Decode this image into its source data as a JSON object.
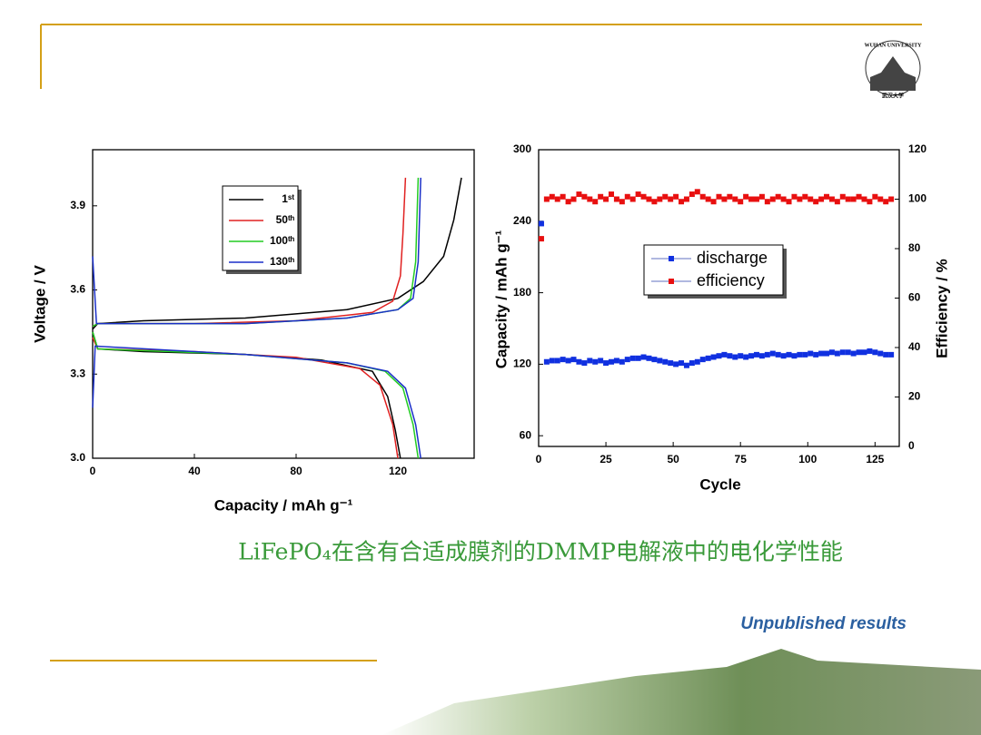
{
  "slide": {
    "caption": "LiFePO₄在含有合适成膜剂的DMMP电解液中的电化学性能",
    "note": "Unpublished results",
    "logo_text": "WUHAN UNIVERSITY",
    "logo_subtext": "武汉大学"
  },
  "chart_data": [
    {
      "type": "line",
      "xlabel": "Capacity / mAh g⁻¹",
      "ylabel": "Voltage / V",
      "xlim": [
        0,
        150
      ],
      "ylim": [
        3.0,
        4.1
      ],
      "xticks": [
        0,
        40,
        80,
        120
      ],
      "yticks": [
        {
          "value": 3,
          "label": "3.0"
        },
        3.3,
        3.6,
        3.9
      ],
      "legend": "upper center",
      "series": [
        {
          "name": "1ˢᵗ",
          "color": "#000000",
          "x": [
            0,
            2,
            20,
            60,
            100,
            120,
            130,
            138,
            142,
            145,
            null,
            0,
            2,
            20,
            60,
            90,
            110,
            116,
            119,
            121
          ],
          "values": [
            3.46,
            3.48,
            3.49,
            3.5,
            3.53,
            3.57,
            3.63,
            3.72,
            3.85,
            4.0,
            null,
            3.45,
            3.39,
            3.38,
            3.37,
            3.35,
            3.31,
            3.22,
            3.1,
            3.0
          ]
        },
        {
          "name": "50ᵗʰ",
          "color": "#e02020",
          "x": [
            0,
            2,
            40,
            80,
            110,
            118,
            121,
            122,
            123,
            null,
            0,
            2,
            40,
            80,
            105,
            113,
            118,
            120
          ],
          "values": [
            3.47,
            3.48,
            3.48,
            3.49,
            3.52,
            3.56,
            3.65,
            3.8,
            4.0,
            null,
            3.43,
            3.39,
            3.38,
            3.36,
            3.32,
            3.26,
            3.12,
            3.0
          ]
        },
        {
          "name": "100ᵗʰ",
          "color": "#22cc22",
          "x": [
            0,
            2,
            60,
            100,
            120,
            125,
            127,
            128,
            null,
            0,
            2,
            60,
            100,
            115,
            122,
            126,
            128
          ],
          "values": [
            3.47,
            3.48,
            3.48,
            3.5,
            3.53,
            3.57,
            3.7,
            4.0,
            null,
            3.45,
            3.39,
            3.37,
            3.34,
            3.31,
            3.25,
            3.12,
            3.0
          ]
        },
        {
          "name": "130ᵗʰ",
          "color": "#1a2fc8",
          "x": [
            0,
            1.5,
            60,
            100,
            120,
            126,
            128,
            129,
            null,
            0,
            1,
            60,
            100,
            116,
            123,
            127,
            129
          ],
          "values": [
            3.72,
            3.48,
            3.48,
            3.5,
            3.53,
            3.57,
            3.7,
            4.0,
            null,
            3.18,
            3.4,
            3.37,
            3.34,
            3.31,
            3.25,
            3.12,
            3.0
          ]
        }
      ]
    },
    {
      "type": "scatter",
      "xlabel": "Cycle",
      "ylabel": "Capacity / mAh g⁻¹",
      "y2label": "Efficiency / %",
      "xlim": [
        0,
        134
      ],
      "ylim": [
        51,
        300
      ],
      "y2lim": [
        0,
        120
      ],
      "xticks": [
        0,
        25,
        50,
        75,
        100,
        125
      ],
      "yticks": [
        60,
        120,
        180,
        240,
        300
      ],
      "y2ticks": [
        0,
        20,
        40,
        60,
        80,
        100,
        120
      ],
      "legend": "center",
      "x": [
        1,
        3,
        5,
        7,
        9,
        11,
        13,
        15,
        17,
        19,
        21,
        23,
        25,
        27,
        29,
        31,
        33,
        35,
        37,
        39,
        41,
        43,
        45,
        47,
        49,
        51,
        53,
        55,
        57,
        59,
        61,
        63,
        65,
        67,
        69,
        71,
        73,
        75,
        77,
        79,
        81,
        83,
        85,
        87,
        89,
        91,
        93,
        95,
        97,
        99,
        101,
        103,
        105,
        107,
        109,
        111,
        113,
        115,
        117,
        119,
        121,
        123,
        125,
        127,
        129,
        131
      ],
      "series": [
        {
          "name": "discharge",
          "color": "#1030e0",
          "values": [
            238,
            122,
            123,
            123,
            124,
            123,
            124,
            122,
            121,
            123,
            122,
            123,
            121,
            122,
            123,
            122,
            124,
            125,
            125,
            126,
            125,
            124,
            123,
            122,
            121,
            120,
            121,
            119,
            121,
            122,
            124,
            125,
            126,
            127,
            128,
            127,
            126,
            127,
            126,
            127,
            128,
            127,
            128,
            129,
            128,
            127,
            128,
            127,
            128,
            128,
            129,
            128,
            129,
            129,
            130,
            129,
            130,
            130,
            129,
            130,
            130,
            131,
            130,
            129,
            128,
            128
          ]
        },
        {
          "name": "efficiency",
          "color": "#e81010",
          "axis": "y2",
          "values": [
            84,
            100,
            101,
            100,
            101,
            99,
            100,
            102,
            101,
            100,
            99,
            101,
            100,
            102,
            100,
            99,
            101,
            100,
            102,
            101,
            100,
            99,
            100,
            101,
            100,
            101,
            99,
            100,
            102,
            103,
            101,
            100,
            99,
            101,
            100,
            101,
            100,
            99,
            101,
            100,
            100,
            101,
            99,
            100,
            101,
            100,
            99,
            101,
            100,
            101,
            100,
            99,
            100,
            101,
            100,
            99,
            101,
            100,
            100,
            101,
            100,
            99,
            101,
            100,
            99,
            100
          ]
        }
      ]
    }
  ]
}
